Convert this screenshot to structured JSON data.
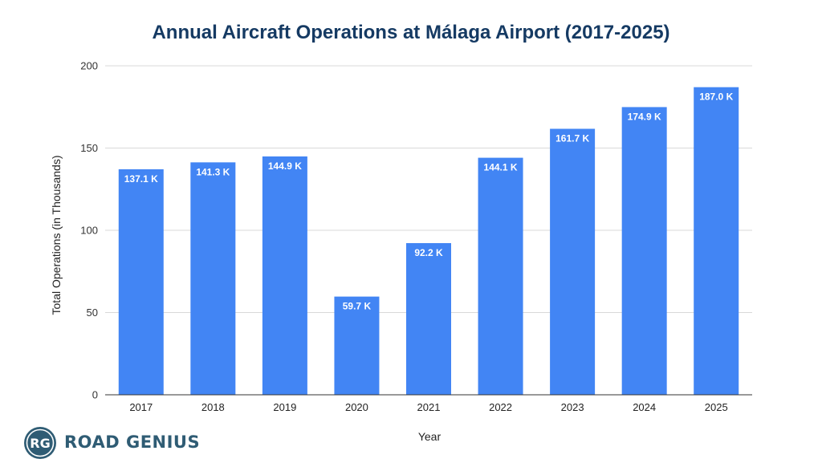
{
  "colors": {
    "bar": "#4285f4",
    "title": "#153a63",
    "grid": "#d9d9d9",
    "axis": "#333333",
    "label_text": "#ffffff",
    "brand": "#2f5c74"
  },
  "brand": {
    "badge_text": "RG",
    "name": "ROAD GENIUS"
  },
  "chart_data": {
    "type": "bar",
    "title": "Annual Aircraft Operations at Málaga Airport (2017-2025)",
    "xlabel": "Year",
    "ylabel": "Total Operations (in Thousands)",
    "categories": [
      "2017",
      "2018",
      "2019",
      "2020",
      "2021",
      "2022",
      "2023",
      "2024",
      "2025"
    ],
    "values": [
      137.1,
      141.3,
      144.9,
      59.7,
      92.2,
      144.1,
      161.7,
      174.9,
      187.0
    ],
    "data_labels": [
      "137.1 K",
      "141.3 K",
      "144.9 K",
      "59.7 K",
      "92.2 K",
      "144.1 K",
      "161.7 K",
      "174.9 K",
      "187.0 K"
    ],
    "ylim": [
      0,
      200
    ],
    "yticks": [
      0,
      50,
      100,
      150,
      200
    ],
    "grid": true,
    "legend": "none"
  }
}
